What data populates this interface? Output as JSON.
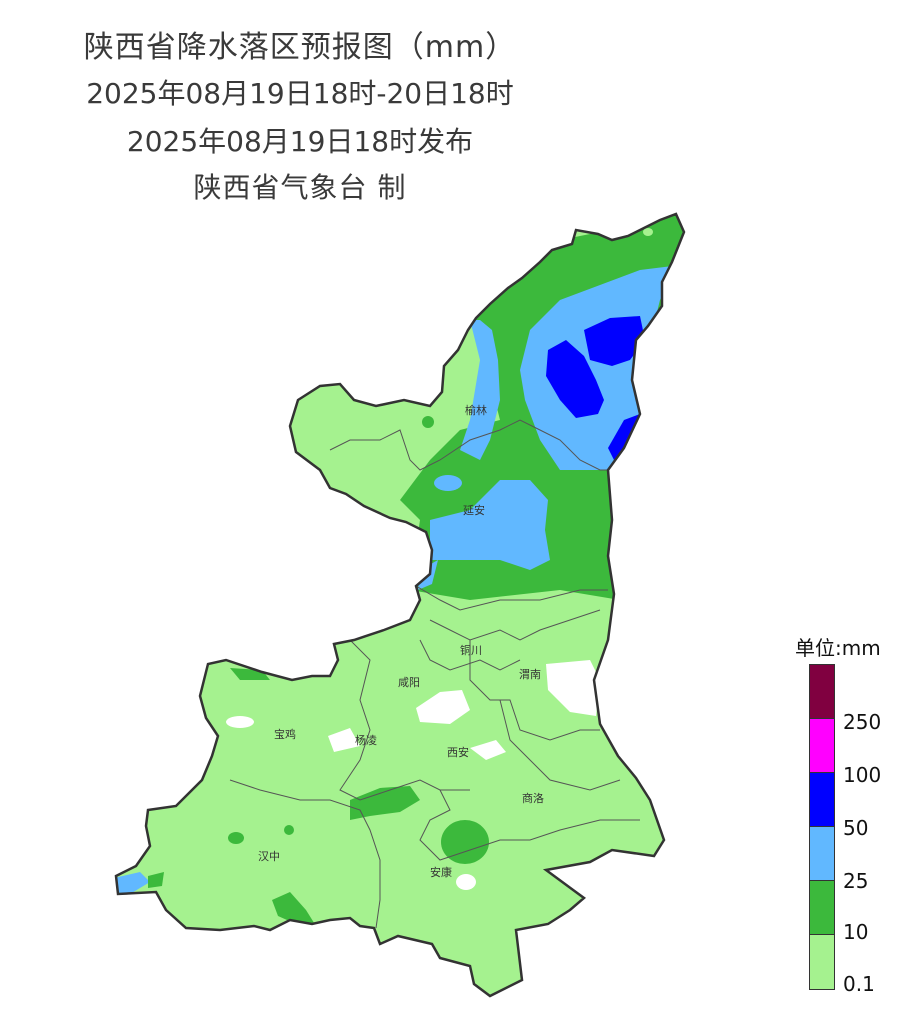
{
  "header": {
    "title": "陕西省降水落区预报图（mm）",
    "period": "2025年08月19日18时-20日18时",
    "issued": "2025年08月19日18时发布",
    "producer": "陕西省气象台 制"
  },
  "cities": {
    "yulin": "榆林",
    "yanan": "延安",
    "tongchuan": "铜川",
    "xianyang": "咸阳",
    "weinan": "渭南",
    "baoji": "宝鸡",
    "yangling": "杨凌",
    "xian": "西安",
    "shangluo": "商洛",
    "hanzhong": "汉中",
    "ankang": "安康"
  },
  "legend": {
    "unit_label": "单位:mm",
    "levels": [
      {
        "color": "#800040",
        "label": ""
      },
      {
        "color": "#ff00ff",
        "label": "250"
      },
      {
        "color": "#0000ff",
        "label": "100"
      },
      {
        "color": "#61b8ff",
        "label": "50"
      },
      {
        "color": "#3cb93c",
        "label": "25"
      },
      {
        "color": "#a5f28f",
        "label": "10"
      }
    ],
    "bottom_label": "0.1"
  },
  "colors": {
    "light_green": "#a5f28f",
    "green": "#3cb93c",
    "light_blue": "#61b8ff",
    "blue": "#0000ff",
    "border": "#333333"
  }
}
